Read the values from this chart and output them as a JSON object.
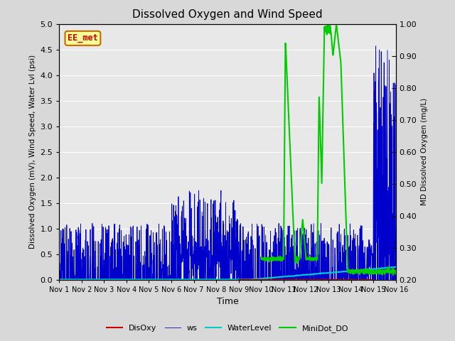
{
  "title": "Dissolved Oxygen and Wind Speed",
  "xlabel": "Time",
  "ylabel_left": "Dissolved Oxygen (mV), Wind Speed, Water Lvl (psi)",
  "ylabel_right": "MD Dissolved Oxygen (mg/L)",
  "xlim": [
    0,
    15
  ],
  "ylim_left": [
    0.0,
    5.0
  ],
  "ylim_right": [
    0.2,
    1.0
  ],
  "xtick_labels": [
    "Nov 1",
    "Nov 2",
    "Nov 3",
    "Nov 4",
    "Nov 5",
    "Nov 6",
    "Nov 7",
    "Nov 8",
    "Nov 9",
    "Nov 10",
    "Nov 11",
    "Nov 12",
    "Nov 13",
    "Nov 14",
    "Nov 15",
    "Nov 16"
  ],
  "xtick_positions": [
    0,
    1,
    2,
    3,
    4,
    5,
    6,
    7,
    8,
    9,
    10,
    11,
    12,
    13,
    14,
    15
  ],
  "ytick_left": [
    0.0,
    0.5,
    1.0,
    1.5,
    2.0,
    2.5,
    3.0,
    3.5,
    4.0,
    4.5,
    5.0
  ],
  "ytick_right_labeled": [
    0.2,
    0.3,
    0.4,
    0.5,
    0.6,
    0.7,
    0.8,
    0.9,
    1.0
  ],
  "colors": {
    "DisOxy": "#cc0000",
    "ws": "#0000cc",
    "WaterLevel": "#00cccc",
    "MiniDot_DO": "#00cc00",
    "annotation_bg": "#ffff99",
    "annotation_border": "#cc6600",
    "annotation_text": "#cc0000"
  },
  "annotation_text": "EE_met",
  "background_color": "#e8e8e8",
  "grid_color": "#ffffff",
  "fig_width": 6.4,
  "fig_height": 4.8,
  "dpi": 100
}
